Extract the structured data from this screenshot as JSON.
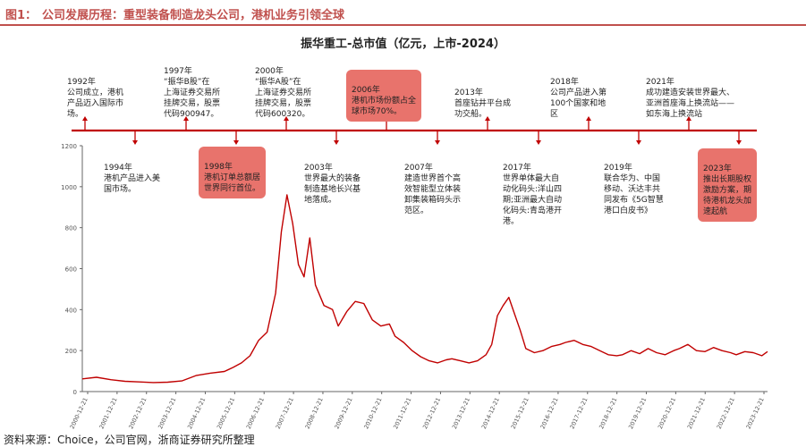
{
  "figure": {
    "label": "图1：",
    "title": "公司发展历程：重型装备制造龙头公司，港机业务引领全球"
  },
  "source_note": "资料来源：Choice，公司官网，浙商证券研究所整理",
  "colors": {
    "accent": "#c0504d",
    "line": "#c00000",
    "highlight_bg": "#e8736c",
    "timeline": "#c00000"
  },
  "chart_data": {
    "type": "line",
    "title": "振华重工-总市值（亿元，上市-2024）",
    "ylim": [
      0,
      1200
    ],
    "yticks": [
      0,
      200,
      400,
      600,
      800,
      1000,
      1200
    ],
    "grid": false,
    "x_tick_labels": [
      "2000-12-21",
      "2001-12-21",
      "2002-12-21",
      "2003-12-21",
      "2004-12-21",
      "2005-12-21",
      "2006-12-21",
      "2007-12-21",
      "2008-12-21",
      "2009-12-21",
      "2010-12-21",
      "2011-12-21",
      "2012-12-21",
      "2013-12-21",
      "2014-12-21",
      "2015-12-21",
      "2016-12-21",
      "2017-12-21",
      "2018-12-21",
      "2019-12-21",
      "2020-12-21",
      "2021-12-21",
      "2022-12-21",
      "2023-12-21"
    ],
    "series": [
      {
        "x": [
          2000.0,
          2000.5,
          2001.0,
          2001.5,
          2002.0,
          2002.5,
          2003.0,
          2003.5,
          2004.0,
          2004.5,
          2005.0,
          2005.3,
          2005.6,
          2005.9,
          2006.2,
          2006.5,
          2006.8,
          2007.0,
          2007.2,
          2007.4,
          2007.6,
          2007.8,
          2008.0,
          2008.2,
          2008.5,
          2008.8,
          2009.0,
          2009.3,
          2009.6,
          2009.9,
          2010.2,
          2010.5,
          2010.8,
          2011.0,
          2011.3,
          2011.6,
          2011.9,
          2012.2,
          2012.5,
          2012.8,
          2013.0,
          2013.3,
          2013.6,
          2013.9,
          2014.2,
          2014.4,
          2014.6,
          2014.8,
          2015.0,
          2015.2,
          2015.4,
          2015.6,
          2015.9,
          2016.2,
          2016.5,
          2016.8,
          2017.0,
          2017.3,
          2017.6,
          2017.9,
          2018.2,
          2018.5,
          2018.8,
          2019.0,
          2019.3,
          2019.6,
          2019.9,
          2020.2,
          2020.5,
          2020.8,
          2021.0,
          2021.3,
          2021.6,
          2021.9,
          2022.2,
          2022.5,
          2022.8,
          2023.0,
          2023.3,
          2023.6,
          2023.9,
          2024.0,
          2024.1
        ],
        "values": [
          62,
          70,
          58,
          50,
          47,
          44,
          46,
          52,
          78,
          90,
          98,
          118,
          140,
          175,
          250,
          290,
          480,
          780,
          960,
          820,
          620,
          560,
          750,
          520,
          420,
          400,
          320,
          390,
          440,
          430,
          350,
          320,
          330,
          270,
          240,
          200,
          170,
          150,
          140,
          155,
          160,
          150,
          140,
          150,
          180,
          230,
          370,
          420,
          460,
          380,
          300,
          210,
          190,
          200,
          220,
          230,
          240,
          250,
          230,
          220,
          200,
          180,
          175,
          180,
          200,
          185,
          210,
          190,
          180,
          200,
          210,
          230,
          200,
          195,
          215,
          200,
          190,
          180,
          195,
          190,
          175,
          185,
          195
        ]
      }
    ],
    "annotations": [
      {
        "year": "1992年",
        "text": "公司成立，港机\n产品迈入国际市\n场。",
        "highlight": false
      },
      {
        "year": "1994年",
        "text": "港机产品进入美\n国市场。",
        "highlight": false
      },
      {
        "year": "1997年",
        "text": "“振华B股”在\n上海证券交易所\n挂牌交易，股票\n代码900947。",
        "highlight": false
      },
      {
        "year": "1998年",
        "text": "港机订单总额居\n世界同行首位。",
        "highlight": true
      },
      {
        "year": "2000年",
        "text": "“振华A股”在\n上海证券交易所\n挂牌交易，股票\n代码600320。",
        "highlight": false
      },
      {
        "year": "2003年",
        "text": "世界最大的装备\n制造基地长兴基\n地落成。",
        "highlight": false
      },
      {
        "year": "2006年",
        "text": "港机市场份额占全\n球市场70%。",
        "highlight": true
      },
      {
        "year": "2007年",
        "text": "建造世界首个高\n效智能型立体装\n卸集装箱码头示\n范区。",
        "highlight": false
      },
      {
        "year": "2013年",
        "text": "首座钻井平台成\n功交船。",
        "highlight": false
      },
      {
        "year": "2017年",
        "text": "世界单体最大自\n动化码头:洋山四\n期;亚洲最大自动\n化码头:青岛港开\n港。",
        "highlight": false
      },
      {
        "year": "2018年",
        "text": "公司产品进入第\n100个国家和地\n区",
        "highlight": false
      },
      {
        "year": "2019年",
        "text": "联合华为、中国\n移动、沃达丰共\n同发布《5G智慧\n港口白皮书》",
        "highlight": false
      },
      {
        "year": "2021年",
        "text": "成功建造安装世界最大、\n亚洲首座海上换流站——\n如东海上换流站",
        "highlight": false
      },
      {
        "year": "2023年",
        "text": "推出长期股权\n激励方案，期\n待港机龙头加\n速起航",
        "highlight": true
      }
    ]
  }
}
